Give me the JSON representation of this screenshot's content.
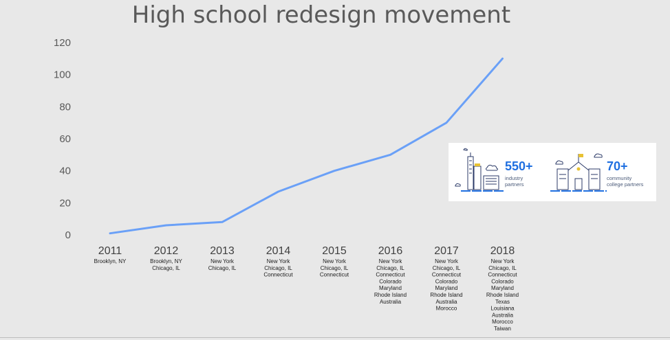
{
  "chart_data": {
    "type": "line",
    "title": "High school redesign movement",
    "categories": [
      "2011",
      "2012",
      "2013",
      "2014",
      "2015",
      "2016",
      "2017",
      "2018"
    ],
    "series": [
      {
        "values": [
          1,
          6,
          8,
          27,
          40,
          50,
          70,
          110
        ]
      }
    ],
    "ylim": [
      0,
      120
    ],
    "yticks": [
      0,
      20,
      40,
      60,
      80,
      100,
      120
    ],
    "grid": false,
    "line_color": "#6aa0f7",
    "locations": [
      [
        "Brooklyn, NY"
      ],
      [
        "Brooklyn, NY",
        "Chicago, IL"
      ],
      [
        "New York",
        "Chicago, IL"
      ],
      [
        "New York",
        "Chicago, IL",
        "Connecticut"
      ],
      [
        "New York",
        "Chicago, IL",
        "Connecticut"
      ],
      [
        "New York",
        "Chicago, IL",
        "Connecticut",
        "Colorado",
        "Maryland",
        "Rhode Island",
        "Australia"
      ],
      [
        "New York",
        "Chicago, IL",
        "Connecticut",
        "Colorado",
        "Maryland",
        "Rhode Island",
        "Australia",
        "Morocco"
      ],
      [
        "New York",
        "Chicago, IL",
        "Connecticut",
        "Colorado",
        "Maryland",
        "Rhode Island",
        "Texas",
        "Louisiana",
        "Australia",
        "Morocco",
        "Taiwan"
      ]
    ]
  },
  "infographic": {
    "industry": {
      "value": "550+",
      "line1": "industry",
      "line2": "partners",
      "icon": "city-buildings-icon"
    },
    "college": {
      "value": "70+",
      "line1": "community",
      "line2": "college partners",
      "icon": "school-building-icon"
    },
    "accent_color": "#1f6fe0"
  }
}
